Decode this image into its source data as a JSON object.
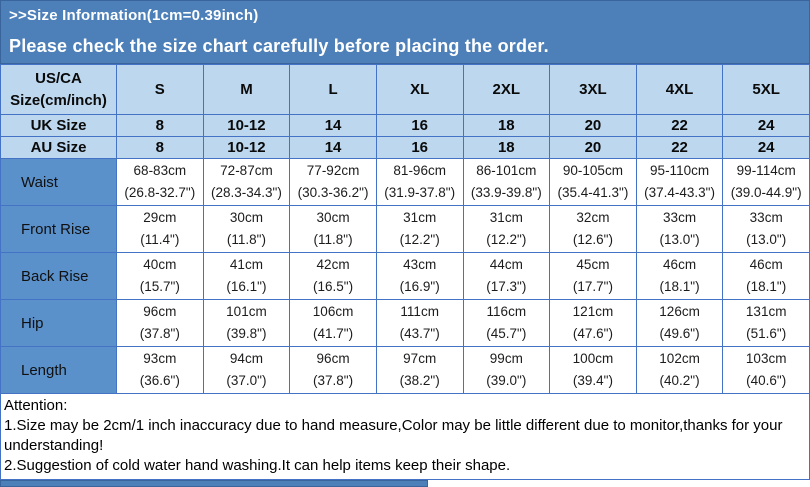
{
  "banner": {
    "title": ">>Size Information(1cm=0.39inch)",
    "subtitle": "Please check the size chart carefully before placing the order."
  },
  "table": {
    "corner_line1": "US/CA",
    "corner_line2": "Size(cm/inch)",
    "size_headers": [
      "S",
      "M",
      "L",
      "XL",
      "2XL",
      "3XL",
      "4XL",
      "5XL"
    ],
    "simple_rows": [
      {
        "label": "UK Size",
        "values": [
          "8",
          "10-12",
          "14",
          "16",
          "18",
          "20",
          "22",
          "24"
        ]
      },
      {
        "label": "AU Size",
        "values": [
          "8",
          "10-12",
          "14",
          "16",
          "18",
          "20",
          "22",
          "24"
        ]
      }
    ],
    "measure_rows": [
      {
        "label": "Waist",
        "cm": [
          "68-83cm",
          "72-87cm",
          "77-92cm",
          "81-96cm",
          "86-101cm",
          "90-105cm",
          "95-110cm",
          "99-114cm"
        ],
        "inch": [
          "(26.8-32.7\")",
          "(28.3-34.3\")",
          "(30.3-36.2\")",
          "(31.9-37.8\")",
          "(33.9-39.8\")",
          "(35.4-41.3\")",
          "(37.4-43.3\")",
          "(39.0-44.9\")"
        ]
      },
      {
        "label": "Front Rise",
        "cm": [
          "29cm",
          "30cm",
          "30cm",
          "31cm",
          "31cm",
          "32cm",
          "33cm",
          "33cm"
        ],
        "inch": [
          "(11.4\")",
          "(11.8\")",
          "(11.8\")",
          "(12.2\")",
          "(12.2\")",
          "(12.6\")",
          "(13.0\")",
          "(13.0\")"
        ]
      },
      {
        "label": "Back Rise",
        "cm": [
          "40cm",
          "41cm",
          "42cm",
          "43cm",
          "44cm",
          "45cm",
          "46cm",
          "46cm"
        ],
        "inch": [
          "(15.7\")",
          "(16.1\")",
          "(16.5\")",
          "(16.9\")",
          "(17.3\")",
          "(17.7\")",
          "(18.1\")",
          "(18.1\")"
        ]
      },
      {
        "label": "Hip",
        "cm": [
          "96cm",
          "101cm",
          "106cm",
          "111cm",
          "116cm",
          "121cm",
          "126cm",
          "131cm"
        ],
        "inch": [
          "(37.8\")",
          "(39.8\")",
          "(41.7\")",
          "(43.7\")",
          "(45.7\")",
          "(47.6\")",
          "(49.6\")",
          "(51.6\")"
        ]
      },
      {
        "label": "Length",
        "cm": [
          "93cm",
          "94cm",
          "96cm",
          "97cm",
          "99cm",
          "100cm",
          "102cm",
          "103cm"
        ],
        "inch": [
          "(36.6\")",
          "(37.0\")",
          "(37.8\")",
          "(38.2\")",
          "(39.0\")",
          "(39.4\")",
          "(40.2\")",
          "(40.6\")"
        ]
      }
    ]
  },
  "attention": {
    "heading": "Attention:",
    "note1": "1.Size may be 2cm/1 inch inaccuracy due to hand measure,Color may be little different due to monitor,thanks for your understanding!",
    "note2": "2.Suggestion of cold water hand washing.It can help items keep their shape."
  },
  "colors": {
    "banner_bg": "#4d80b9",
    "banner_edge": "#39659c",
    "header_row_bg": "#bdd7ee",
    "label_cell_bg": "#5b91cb",
    "grid_border": "#4472c4",
    "banner_text": "#ffffff"
  }
}
